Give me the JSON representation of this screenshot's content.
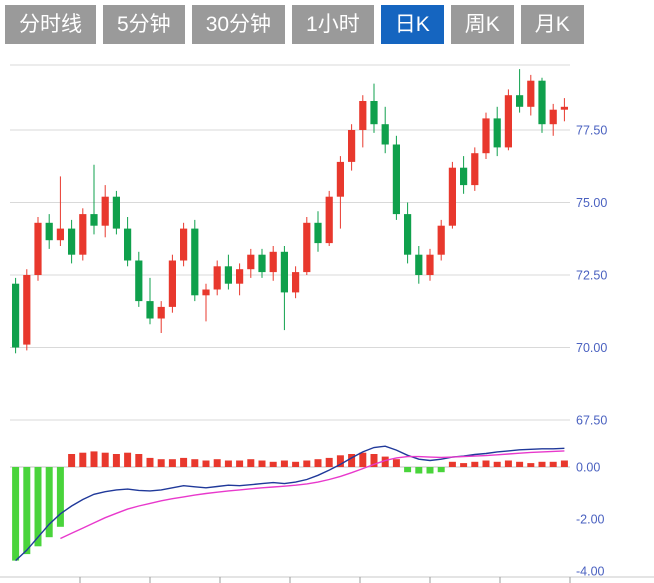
{
  "tabs": {
    "items": [
      {
        "id": "tab-time-sharing-line",
        "label": "分时线",
        "selected": false
      },
      {
        "id": "tab-5min",
        "label": "5分钟",
        "selected": false
      },
      {
        "id": "tab-30min",
        "label": "30分钟",
        "selected": false
      },
      {
        "id": "tab-1hour",
        "label": "1小时",
        "selected": false
      },
      {
        "id": "tab-daily-k",
        "label": "日K",
        "selected": true
      },
      {
        "id": "tab-weekly-k",
        "label": "周K",
        "selected": false
      },
      {
        "id": "tab-monthly-k",
        "label": "月K",
        "selected": false
      }
    ]
  },
  "colors": {
    "tab_bg": "#9a9a9a",
    "tab_selected_bg": "#1565c0",
    "tab_text": "#ffffff",
    "axis_label": "#4a61c0",
    "grid": "#d9d9d9",
    "zero_line": "#c4c4c4",
    "bottom_border": "#c9c9c9",
    "tick": "#9b9b9b",
    "background": "#ffffff"
  },
  "chart_data": [
    {
      "panel": "price",
      "type": "candlestick",
      "y_axis_labels": [
        "77.50",
        "75.00",
        "72.50",
        "70.00",
        "67.50"
      ],
      "y_axis_values": [
        77.5,
        75.0,
        72.5,
        70.0,
        67.5
      ],
      "ylim": [
        67.2,
        79.9
      ],
      "grid": true,
      "up_color": "#e8382d",
      "down_color": "#0fa04c",
      "candles_ohlc": [
        [
          72.2,
          72.4,
          69.8,
          70.0
        ],
        [
          70.1,
          72.7,
          69.9,
          72.5
        ],
        [
          72.5,
          74.5,
          72.3,
          74.3
        ],
        [
          74.3,
          74.6,
          73.4,
          73.7
        ],
        [
          73.7,
          75.9,
          73.5,
          74.1
        ],
        [
          74.1,
          74.4,
          72.9,
          73.2
        ],
        [
          73.2,
          74.8,
          73.0,
          74.6
        ],
        [
          74.6,
          76.3,
          73.9,
          74.2
        ],
        [
          74.2,
          75.6,
          73.8,
          75.2
        ],
        [
          75.2,
          75.4,
          73.9,
          74.1
        ],
        [
          74.1,
          74.5,
          72.8,
          73.0
        ],
        [
          73.0,
          73.3,
          71.4,
          71.6
        ],
        [
          71.6,
          72.4,
          70.8,
          71.0
        ],
        [
          71.0,
          71.6,
          70.5,
          71.4
        ],
        [
          71.4,
          73.2,
          71.2,
          73.0
        ],
        [
          73.0,
          74.3,
          72.8,
          74.1
        ],
        [
          74.1,
          74.4,
          71.6,
          71.8
        ],
        [
          71.8,
          72.2,
          70.9,
          72.0
        ],
        [
          72.0,
          73.0,
          71.8,
          72.8
        ],
        [
          72.8,
          73.2,
          72.0,
          72.2
        ],
        [
          72.2,
          72.9,
          71.8,
          72.7
        ],
        [
          72.7,
          73.4,
          72.4,
          73.2
        ],
        [
          73.2,
          73.4,
          72.4,
          72.6
        ],
        [
          72.6,
          73.5,
          72.3,
          73.3
        ],
        [
          73.3,
          73.5,
          70.6,
          71.9
        ],
        [
          71.9,
          72.8,
          71.7,
          72.6
        ],
        [
          72.6,
          74.5,
          72.5,
          74.3
        ],
        [
          74.3,
          74.7,
          73.3,
          73.6
        ],
        [
          73.6,
          75.4,
          73.5,
          75.2
        ],
        [
          75.2,
          76.6,
          74.1,
          76.4
        ],
        [
          76.4,
          77.7,
          76.1,
          77.5
        ],
        [
          77.5,
          78.7,
          76.9,
          78.5
        ],
        [
          78.5,
          79.1,
          77.4,
          77.7
        ],
        [
          77.7,
          78.3,
          76.7,
          77.0
        ],
        [
          77.0,
          77.3,
          74.4,
          74.6
        ],
        [
          74.6,
          75.0,
          72.9,
          73.2
        ],
        [
          73.2,
          73.5,
          72.2,
          72.5
        ],
        [
          72.5,
          73.4,
          72.3,
          73.2
        ],
        [
          73.2,
          74.4,
          73.0,
          74.2
        ],
        [
          74.2,
          76.4,
          74.1,
          76.2
        ],
        [
          76.2,
          76.6,
          75.3,
          75.6
        ],
        [
          75.6,
          76.9,
          75.4,
          76.7
        ],
        [
          76.7,
          78.1,
          76.5,
          77.9
        ],
        [
          77.9,
          78.3,
          76.6,
          76.9
        ],
        [
          76.9,
          78.9,
          76.8,
          78.7
        ],
        [
          78.7,
          79.6,
          78.1,
          78.3
        ],
        [
          78.3,
          79.4,
          78.0,
          79.2
        ],
        [
          79.2,
          79.3,
          77.4,
          77.7
        ],
        [
          77.7,
          78.4,
          77.3,
          78.2
        ],
        [
          78.2,
          78.6,
          77.8,
          78.3
        ]
      ]
    },
    {
      "panel": "macd",
      "type": "macd",
      "y_axis_labels": [
        "0.00",
        "-2.00",
        "-4.00"
      ],
      "y_axis_values": [
        0,
        -2,
        -4
      ],
      "ylim": [
        -4.2,
        1.0
      ],
      "histogram_up_color": "#e8382d",
      "histogram_down_color": "#49d43b",
      "dif_color": "#20399a",
      "dea_color": "#e839cc",
      "histogram": [
        -3.6,
        -3.35,
        -3.05,
        -2.7,
        -2.3,
        0.5,
        0.55,
        0.6,
        0.55,
        0.5,
        0.55,
        0.5,
        0.35,
        0.3,
        0.3,
        0.35,
        0.3,
        0.25,
        0.3,
        0.25,
        0.25,
        0.3,
        0.25,
        0.2,
        0.25,
        0.2,
        0.25,
        0.3,
        0.35,
        0.45,
        0.5,
        0.55,
        0.5,
        0.4,
        0.3,
        -0.2,
        -0.25,
        -0.25,
        -0.2,
        0.2,
        0.15,
        0.2,
        0.25,
        0.2,
        0.25,
        0.2,
        0.15,
        0.2,
        0.2,
        0.25
      ],
      "dif_line": [
        -3.6,
        -3.2,
        -2.7,
        -2.2,
        -1.8,
        -1.5,
        -1.25,
        -1.05,
        -0.95,
        -0.88,
        -0.85,
        -0.9,
        -0.92,
        -0.88,
        -0.8,
        -0.72,
        -0.76,
        -0.8,
        -0.75,
        -0.7,
        -0.72,
        -0.68,
        -0.64,
        -0.6,
        -0.64,
        -0.58,
        -0.48,
        -0.32,
        -0.12,
        0.1,
        0.35,
        0.58,
        0.75,
        0.8,
        0.65,
        0.45,
        0.3,
        0.25,
        0.3,
        0.38,
        0.42,
        0.48,
        0.52,
        0.58,
        0.62,
        0.66,
        0.68,
        0.7,
        0.7,
        0.72
      ],
      "dea_line": [
        null,
        null,
        null,
        null,
        -2.75,
        -2.55,
        -2.35,
        -2.15,
        -1.95,
        -1.78,
        -1.62,
        -1.5,
        -1.4,
        -1.3,
        -1.22,
        -1.15,
        -1.08,
        -1.02,
        -0.97,
        -0.92,
        -0.88,
        -0.84,
        -0.8,
        -0.77,
        -0.74,
        -0.7,
        -0.65,
        -0.58,
        -0.48,
        -0.36,
        -0.22,
        -0.06,
        0.1,
        0.25,
        0.35,
        0.4,
        0.4,
        0.38,
        0.37,
        0.38,
        0.4,
        0.42,
        0.44,
        0.47,
        0.5,
        0.53,
        0.56,
        0.58,
        0.6,
        0.62
      ]
    }
  ]
}
